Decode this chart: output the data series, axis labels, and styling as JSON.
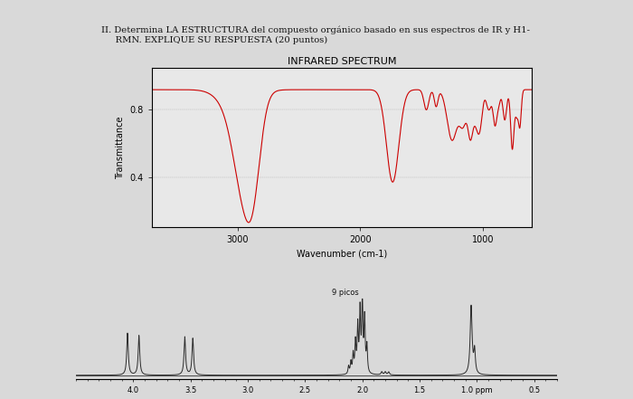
{
  "title_text": "II. Determina LA ESTRUCTURA del compuesto orgánico basado en sus espectros de IR y H1-\n     RMN. EXPLIQUE SU RESPUESTA (20 puntos)",
  "ir_title": "INFRARED SPECTRUM",
  "ir_xlabel": "Wavenumber (cm-1)",
  "ir_ylabel": "Transmittance",
  "ir_xticks": [
    3000,
    2000,
    1000
  ],
  "ir_yticks": [
    0.4,
    0.8
  ],
  "ir_xlim": [
    3700,
    600
  ],
  "ir_ylim": [
    0.1,
    1.05
  ],
  "nmr_xlabel": "",
  "nmr_xticks": [
    4.0,
    3.5,
    3.0,
    2.5,
    2.0,
    1.5,
    1.0,
    0.5
  ],
  "nmr_xtick_labels": [
    "4.0",
    "3.5",
    "3.0",
    "2.5",
    "2.0",
    "1.5",
    "1.0 ppm",
    "0.5"
  ],
  "nmr_annotation": "9 picos",
  "bg_color": "#d9d9d9",
  "ir_line_color": "#cc0000",
  "nmr_line_color": "#2b2b2b",
  "ir_bg": "#e8e8e8",
  "nmr_bg": "#d9d9d9"
}
